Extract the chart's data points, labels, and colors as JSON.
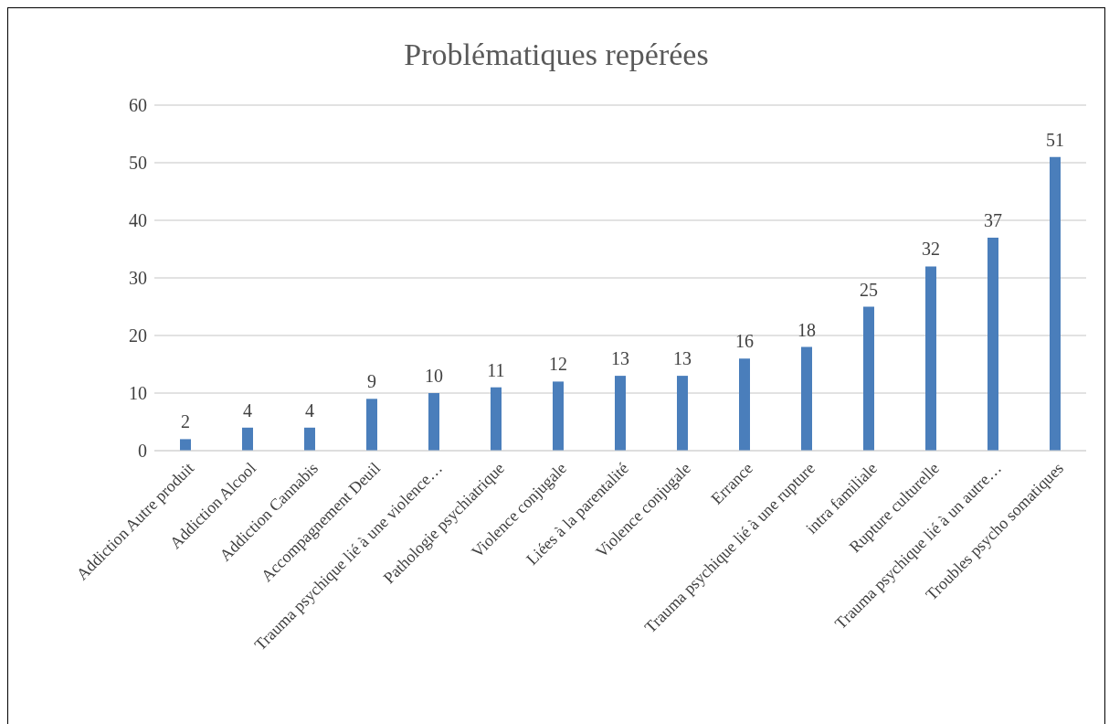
{
  "chart_data": {
    "type": "bar",
    "title": "Problématiques repérées",
    "categories": [
      "Addiction Autre produit",
      "Addiction Alcool",
      "Addiction Cannabis",
      "Accompagnement Deuil",
      "Trauma psychique lié à une violence…",
      "Pathologie psychiatrique",
      "Violence conjugale",
      "Liées à la parentalité",
      "Violence conjugale",
      "Errance",
      "Trauma psychique lié à une rupture",
      "intra familiale",
      "Rupture culturelle",
      "Trauma psychique lié à un autre…",
      "Troubles psycho somatiques"
    ],
    "values": [
      2,
      4,
      4,
      9,
      10,
      11,
      12,
      13,
      13,
      16,
      18,
      25,
      32,
      37,
      51
    ],
    "color": "#4a7ebb",
    "ylim": [
      0,
      60
    ],
    "yticks": [
      0,
      10,
      20,
      30,
      40,
      50,
      60
    ],
    "grid": "y",
    "data_labels": true,
    "legend": false
  }
}
